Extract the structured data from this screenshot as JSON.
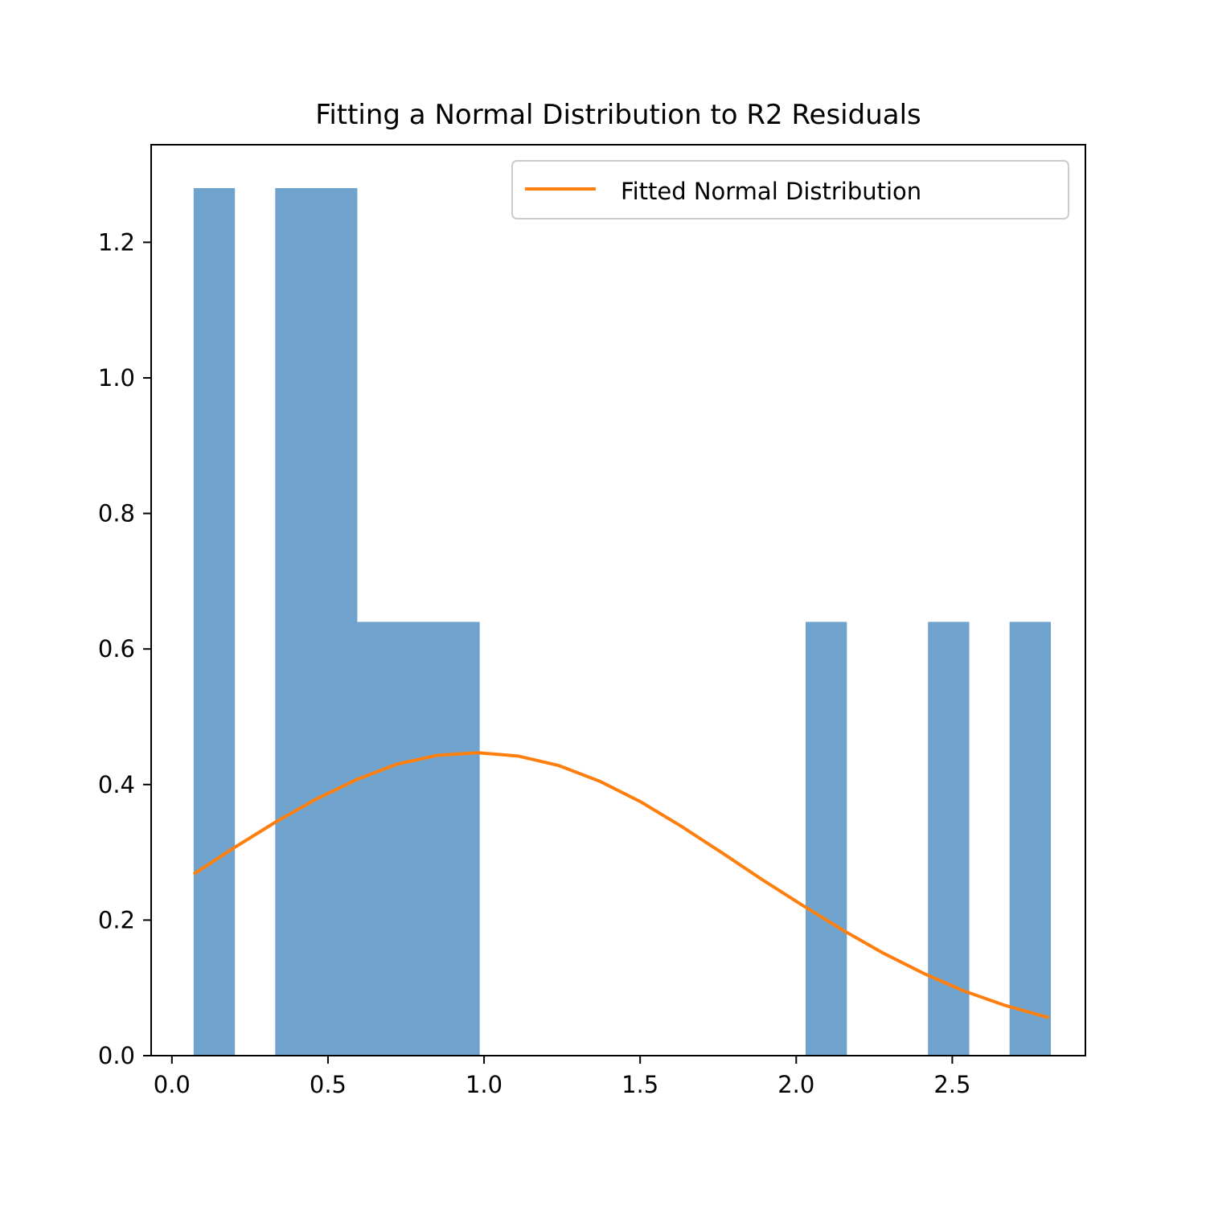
{
  "chart_data": {
    "type": "bar",
    "title": "Fitting a Normal Distribution to R2 Residuals",
    "xlabel": "",
    "ylabel": "",
    "xlim": [
      -0.0665,
      2.9265
    ],
    "ylim": [
      0,
      1.344
    ],
    "x_ticks": [
      0.0,
      0.5,
      1.0,
      1.5,
      2.0,
      2.5
    ],
    "x_tick_labels": [
      "0.0",
      "0.5",
      "1.0",
      "1.5",
      "2.0",
      "2.5"
    ],
    "y_ticks": [
      0.0,
      0.2,
      0.4,
      0.6,
      0.8,
      1.0,
      1.2
    ],
    "y_tick_labels": [
      "0.0",
      "0.2",
      "0.4",
      "0.6",
      "0.8",
      "1.0",
      "1.2"
    ],
    "grid": false,
    "legend": {
      "position": "upper right",
      "entries": [
        "Fitted Normal Distribution"
      ]
    },
    "histogram": {
      "color": "#6fa3cd",
      "bins": [
        {
          "x0": 0.0696,
          "x1": 0.2003,
          "density": 1.28
        },
        {
          "x0": 0.2003,
          "x1": 0.331,
          "density": 0.0
        },
        {
          "x0": 0.331,
          "x1": 0.4617,
          "density": 1.28
        },
        {
          "x0": 0.4617,
          "x1": 0.5924,
          "density": 1.28
        },
        {
          "x0": 0.5924,
          "x1": 0.7231,
          "density": 0.64
        },
        {
          "x0": 0.7231,
          "x1": 0.8538,
          "density": 0.64
        },
        {
          "x0": 0.8538,
          "x1": 0.9845,
          "density": 0.64
        },
        {
          "x0": 0.9845,
          "x1": 1.1152,
          "density": 0.0
        },
        {
          "x0": 1.1152,
          "x1": 1.2459,
          "density": 0.0
        },
        {
          "x0": 1.2459,
          "x1": 1.3766,
          "density": 0.0
        },
        {
          "x0": 1.3766,
          "x1": 1.5073,
          "density": 0.0
        },
        {
          "x0": 1.5073,
          "x1": 1.638,
          "density": 0.0
        },
        {
          "x0": 1.638,
          "x1": 1.7687,
          "density": 0.0
        },
        {
          "x0": 1.7687,
          "x1": 1.8994,
          "density": 0.0
        },
        {
          "x0": 1.8994,
          "x1": 2.0301,
          "density": 0.0
        },
        {
          "x0": 2.0301,
          "x1": 2.1608,
          "density": 0.64
        },
        {
          "x0": 2.1608,
          "x1": 2.2915,
          "density": 0.0
        },
        {
          "x0": 2.2915,
          "x1": 2.4222,
          "density": 0.0
        },
        {
          "x0": 2.4222,
          "x1": 2.5529,
          "density": 0.64
        },
        {
          "x0": 2.5529,
          "x1": 2.6836,
          "density": 0.0
        },
        {
          "x0": 2.6836,
          "x1": 2.8143,
          "density": 0.64
        }
      ]
    },
    "series": [
      {
        "name": "Fitted Normal Distribution",
        "color": "#ff7f0e",
        "x": [
          0.07,
          0.2,
          0.33,
          0.46,
          0.59,
          0.72,
          0.85,
          0.98,
          1.11,
          1.24,
          1.37,
          1.5,
          1.63,
          1.76,
          1.89,
          2.02,
          2.15,
          2.28,
          2.41,
          2.54,
          2.67,
          2.81
        ],
        "y": [
          0.268,
          0.307,
          0.344,
          0.378,
          0.407,
          0.43,
          0.443,
          0.447,
          0.442,
          0.428,
          0.405,
          0.375,
          0.339,
          0.3,
          0.26,
          0.222,
          0.185,
          0.151,
          0.121,
          0.095,
          0.074,
          0.056
        ]
      }
    ]
  }
}
